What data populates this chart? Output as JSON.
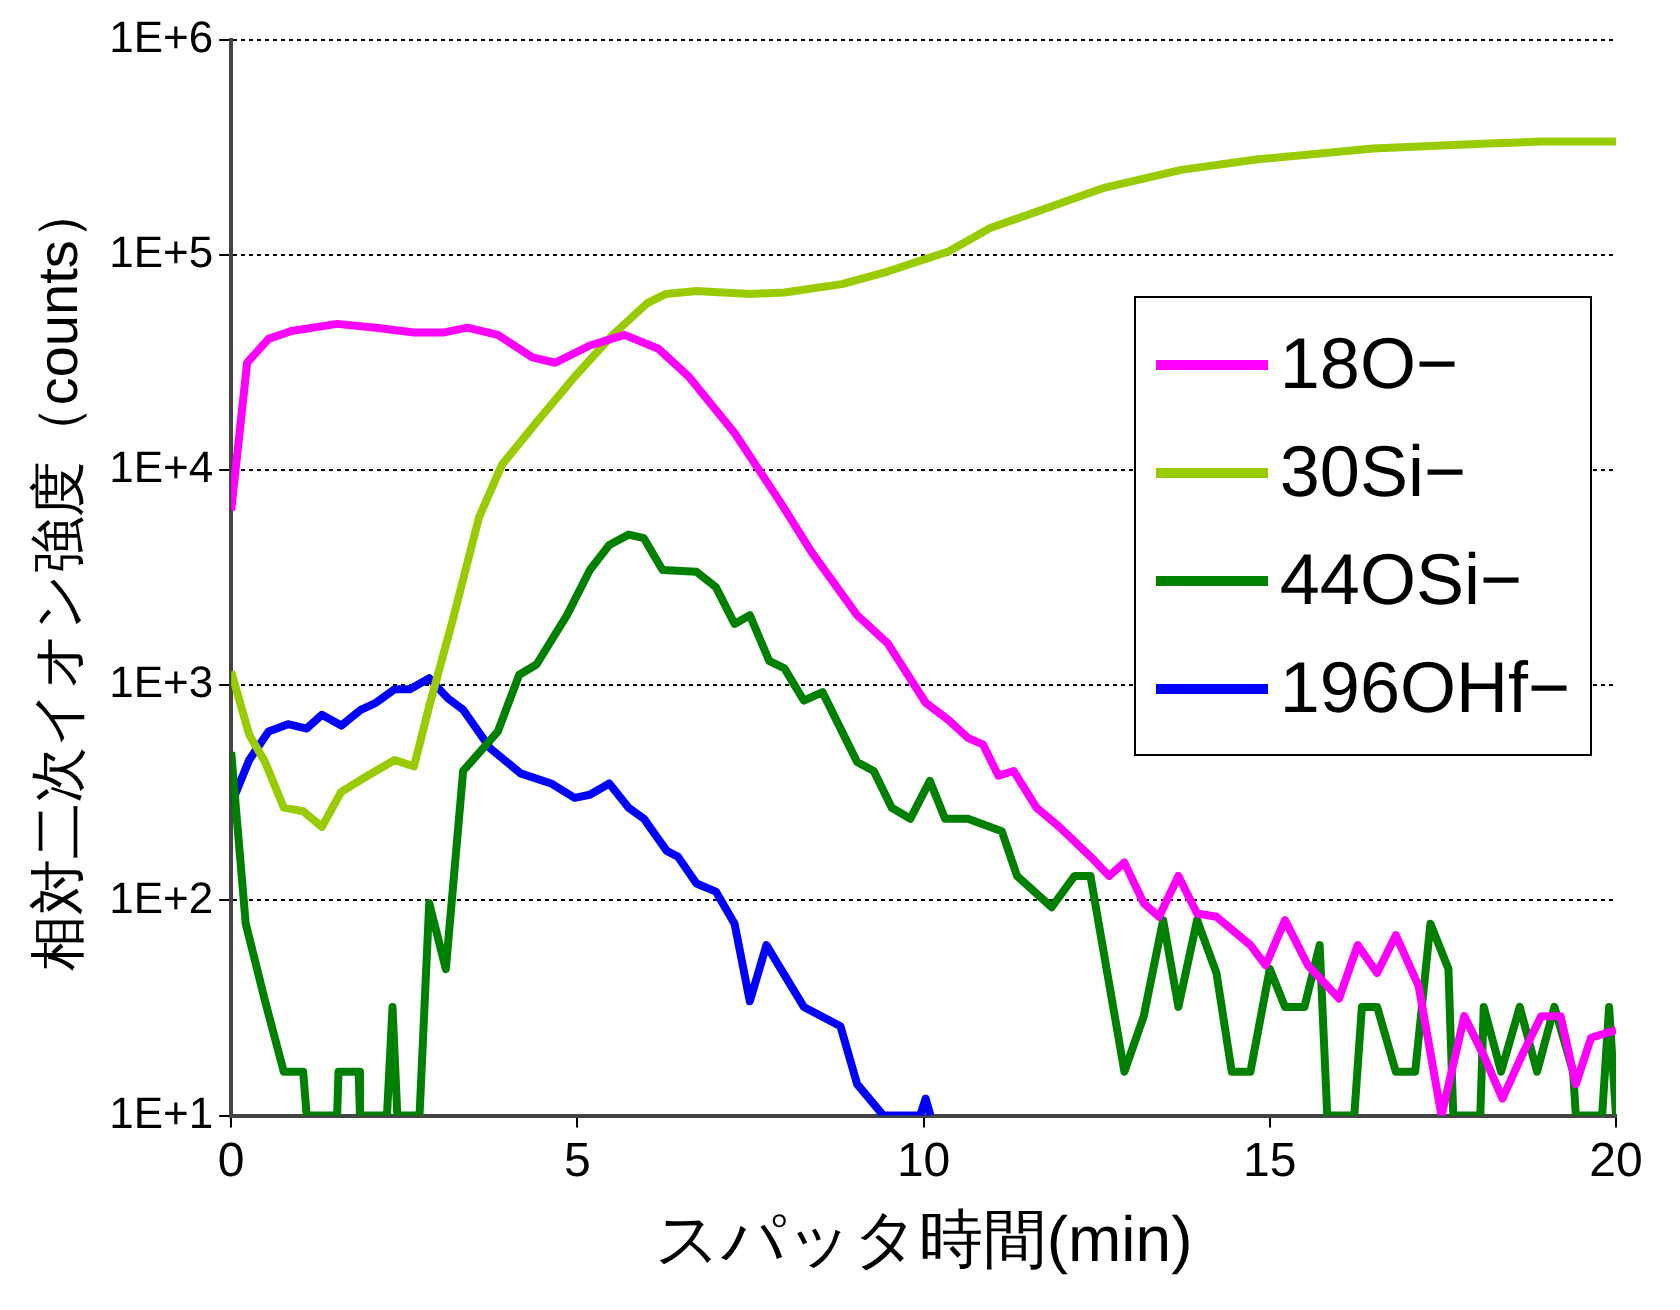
{
  "chart_data": {
    "type": "line",
    "xlabel": "スパッタ時間(min)",
    "ylabel": "相対二次イオン強度（counts）",
    "xlim": [
      0,
      20
    ],
    "xticks": [
      0,
      5,
      10,
      15,
      20
    ],
    "ylim": [
      10,
      1000000
    ],
    "yticks": [
      {
        "value": 10,
        "label": "1E+1"
      },
      {
        "value": 100,
        "label": "1E+2"
      },
      {
        "value": 1000,
        "label": "1E+3"
      },
      {
        "value": 10000,
        "label": "1E+4"
      },
      {
        "value": 100000,
        "label": "1E+5"
      },
      {
        "value": 1000000,
        "label": "1E+6"
      }
    ],
    "log": "y",
    "grid": "y",
    "legend": "right",
    "line_style": "solid",
    "series": [
      {
        "name": "18O−",
        "color": "#ff00ff",
        "x": [
          0,
          0.23,
          0.54,
          0.87,
          1.53,
          2.09,
          2.64,
          3.08,
          3.41,
          3.85,
          4.35,
          4.68,
          5.18,
          5.68,
          6.17,
          6.61,
          7.27,
          7.94,
          8.38,
          9.04,
          9.48,
          10.03,
          10.36,
          10.64,
          10.86,
          11.08,
          11.3,
          11.63,
          11.96,
          12.41,
          12.68,
          12.9,
          13.18,
          13.4,
          13.68,
          13.95,
          14.23,
          14.72,
          14.94,
          15.22,
          15.55,
          16.0,
          16.27,
          16.55,
          16.82,
          17.15,
          17.48,
          17.81,
          18.09,
          18.36,
          18.64,
          18.92,
          19.2,
          19.42,
          19.64,
          20
        ],
        "values": [
          6500,
          31600,
          40800,
          44400,
          47900,
          46000,
          43700,
          43700,
          46000,
          42600,
          33500,
          31600,
          38000,
          42600,
          36700,
          27200,
          14900,
          7030,
          4170,
          2120,
          1570,
          830,
          690,
          570,
          530,
          380,
          400,
          270,
          220,
          160,
          130,
          150,
          97,
          84,
          130,
          87,
          84,
          62,
          50,
          81,
          50,
          35,
          62,
          46,
          69,
          40,
          10,
          29,
          19,
          12,
          19,
          29,
          29,
          14,
          23,
          25
        ]
      },
      {
        "name": "30Si−",
        "color": "#99cc00",
        "x": [
          0,
          0.26,
          0.49,
          0.76,
          1.04,
          1.31,
          1.59,
          1.97,
          2.36,
          2.64,
          2.86,
          3.19,
          3.58,
          3.91,
          4.41,
          4.96,
          5.51,
          6.01,
          6.28,
          6.72,
          7.49,
          7.99,
          8.82,
          9.48,
          10.36,
          10.97,
          12.62,
          13.72,
          14.83,
          16.49,
          18.15,
          18.92,
          20
        ],
        "values": [
          1160,
          590,
          440,
          270,
          260,
          220,
          320,
          380,
          450,
          420,
          800,
          1960,
          6050,
          10600,
          16700,
          27200,
          42600,
          59800,
          66000,
          68100,
          66000,
          67000,
          73300,
          83900,
          104000,
          134000,
          206000,
          249000,
          279000,
          313000,
          330000,
          337000,
          337000
        ]
      },
      {
        "name": "44OSi−",
        "color": "#008000",
        "x": [
          0,
          0.21,
          0.49,
          0.76,
          1.04,
          1.09,
          1.53,
          1.55,
          1.84,
          1.86,
          2.25,
          2.33,
          2.4,
          2.72,
          2.86,
          3.1,
          3.35,
          3.85,
          4.16,
          4.41,
          4.85,
          5.18,
          5.46,
          5.74,
          5.96,
          6.23,
          6.72,
          7.0,
          7.27,
          7.49,
          7.77,
          7.99,
          8.27,
          8.54,
          9.04,
          9.28,
          9.54,
          9.81,
          10.09,
          10.31,
          10.64,
          11.13,
          11.35,
          11.85,
          12.18,
          12.41,
          12.9,
          13.18,
          13.46,
          13.68,
          13.95,
          14.23,
          14.45,
          14.72,
          15.0,
          15.22,
          15.5,
          15.72,
          15.83,
          16.22,
          16.33,
          16.55,
          16.82,
          17.1,
          17.32,
          17.58,
          17.65,
          18.04,
          18.09,
          18.34,
          18.61,
          18.86,
          19.11,
          19.38,
          19.42,
          19.8,
          19.9,
          20
        ],
        "values": [
          490,
          78,
          34,
          16,
          16,
          10,
          10,
          16,
          16,
          10,
          10,
          32,
          10,
          10,
          97,
          48,
          400,
          610,
          1120,
          1250,
          2120,
          3440,
          4490,
          5020,
          4830,
          3440,
          3370,
          2860,
          1930,
          2120,
          1300,
          1200,
          850,
          930,
          440,
          400,
          270,
          240,
          360,
          240,
          240,
          210,
          130,
          93,
          130,
          130,
          16,
          29,
          81,
          32,
          81,
          46,
          16,
          16,
          48,
          32,
          32,
          62,
          10,
          10,
          32,
          32,
          16,
          16,
          78,
          48,
          10,
          10,
          32,
          16,
          32,
          16,
          32,
          16,
          10,
          10,
          32,
          10
        ]
      },
      {
        "name": "196OHf−",
        "color": "#0000ff",
        "x": [
          0,
          0.26,
          0.54,
          0.82,
          1.09,
          1.31,
          1.59,
          1.87,
          2.09,
          2.36,
          2.58,
          2.86,
          3.13,
          3.35,
          3.74,
          4.18,
          4.62,
          4.96,
          5.18,
          5.46,
          5.74,
          5.96,
          6.29,
          6.45,
          6.72,
          7.0,
          7.27,
          7.49,
          7.73,
          8.27,
          8.8,
          9.04,
          9.42,
          9.95,
          10.03,
          10.1
        ],
        "values": [
          280,
          450,
          610,
          660,
          630,
          730,
          650,
          770,
          830,
          960,
          960,
          1080,
          870,
          770,
          510,
          390,
          350,
          300,
          310,
          350,
          270,
          240,
          170,
          160,
          120,
          110,
          78,
          34,
          62,
          32,
          26,
          14,
          10,
          10,
          12,
          10
        ]
      }
    ]
  }
}
